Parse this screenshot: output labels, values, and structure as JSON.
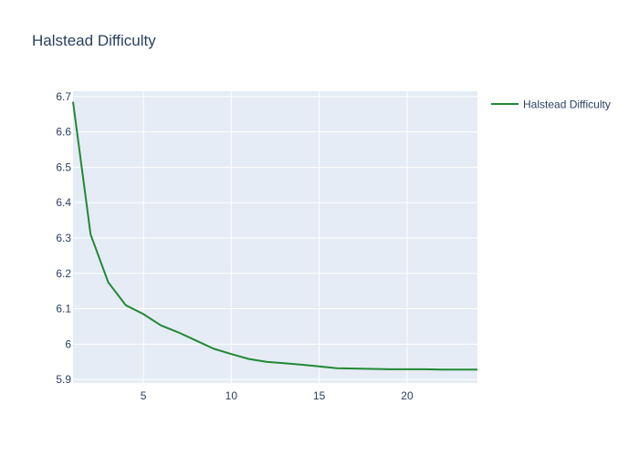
{
  "chart_data": {
    "type": "line",
    "title": "Halstead Difficulty",
    "xlabel": "",
    "ylabel": "",
    "xlim": [
      1,
      24
    ],
    "ylim": [
      5.89,
      6.715
    ],
    "x_ticks": [
      5,
      10,
      15,
      20
    ],
    "y_ticks": [
      5.9,
      6,
      6.1,
      6.2,
      6.3,
      6.4,
      6.5,
      6.6,
      6.7
    ],
    "y_tick_labels": [
      "5.9",
      "6",
      "6.1",
      "6.2",
      "6.3",
      "6.4",
      "6.5",
      "6.6",
      "6.7"
    ],
    "grid": true,
    "legend_position": "top-right",
    "series": [
      {
        "name": "Halstead Difficulty",
        "color": "#228833",
        "x": [
          1,
          2,
          3,
          4,
          5,
          6,
          7,
          8,
          9,
          10,
          11,
          12,
          13,
          14,
          15,
          16,
          17,
          18,
          19,
          20,
          21,
          22,
          23,
          24
        ],
        "y": [
          6.685,
          6.31,
          6.175,
          6.11,
          6.085,
          6.053,
          6.033,
          6.01,
          5.987,
          5.972,
          5.958,
          5.95,
          5.946,
          5.942,
          5.937,
          5.932,
          5.931,
          5.93,
          5.929,
          5.929,
          5.929,
          5.928,
          5.928,
          5.928
        ]
      }
    ]
  },
  "colors": {
    "plot_background": "#e5ecf6",
    "grid": "#ffffff",
    "text": "#2a3f5f"
  }
}
